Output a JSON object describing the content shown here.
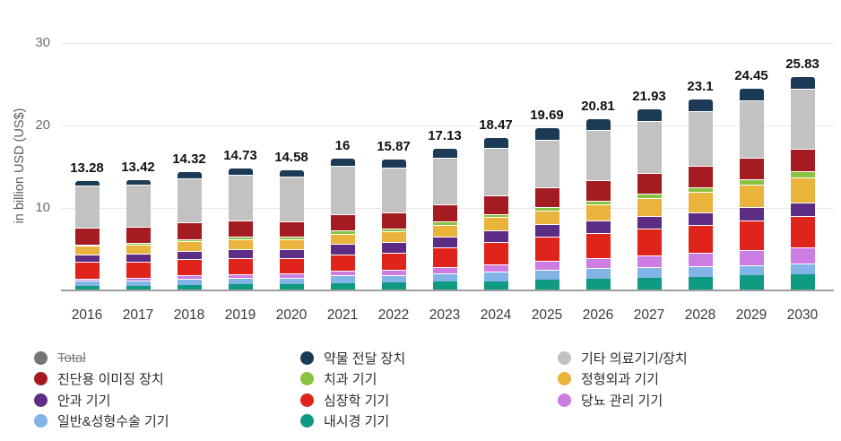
{
  "chart_data": {
    "type": "bar",
    "stacked": true,
    "ylabel": "in billion USD (US$)",
    "ylim": [
      0,
      30
    ],
    "yticks": [
      10,
      20,
      30
    ],
    "grid": true,
    "categories": [
      "2016",
      "2017",
      "2018",
      "2019",
      "2020",
      "2021",
      "2022",
      "2023",
      "2024",
      "2025",
      "2026",
      "2027",
      "2028",
      "2029",
      "2030"
    ],
    "totals": [
      13.28,
      13.42,
      14.32,
      14.73,
      14.58,
      16,
      15.87,
      17.13,
      18.47,
      19.69,
      20.81,
      21.93,
      23.1,
      24.45,
      25.83
    ],
    "total_labels": [
      "13.28",
      "13.42",
      "14.32",
      "14.73",
      "14.58",
      "16",
      "15.87",
      "17.13",
      "18.47",
      "19.69",
      "20.81",
      "21.93",
      "23.1",
      "24.45",
      "25.83"
    ],
    "series_note": "stacked bottom-to-top; values in billion USD, estimated from segment heights",
    "series": [
      {
        "id": "endoscopy",
        "name": "내시경 기기",
        "color": "#0f9b81",
        "values": [
          0.5,
          0.56,
          0.66,
          0.73,
          0.77,
          0.9,
          0.93,
          1.04,
          1.14,
          1.25,
          1.39,
          1.53,
          1.68,
          1.84,
          2.0
        ]
      },
      {
        "id": "general-plastic-surgery",
        "name": "일반&성형수술 기기",
        "color": "#82b4e8",
        "values": [
          0.65,
          0.68,
          0.75,
          0.79,
          0.8,
          0.9,
          0.94,
          1.05,
          1.18,
          1.3,
          1.28,
          1.27,
          1.25,
          1.25,
          1.25
        ]
      },
      {
        "id": "diabetes-care",
        "name": "당뇨 관리 기기",
        "color": "#cd7ce2",
        "values": [
          0.28,
          0.32,
          0.39,
          0.43,
          0.47,
          0.55,
          0.62,
          0.75,
          0.88,
          1.0,
          1.19,
          1.39,
          1.58,
          1.79,
          2.0
        ]
      },
      {
        "id": "cardiology",
        "name": "심장학 기기",
        "color": "#e0231b",
        "values": [
          2.0,
          1.94,
          1.99,
          1.98,
          1.89,
          2.0,
          2.11,
          2.4,
          2.71,
          3.0,
          3.14,
          3.29,
          3.44,
          3.62,
          3.8
        ]
      },
      {
        "id": "ophthalmic",
        "name": "안과 기기",
        "color": "#5d2c84",
        "values": [
          0.87,
          0.92,
          1.02,
          1.09,
          1.1,
          1.25,
          1.22,
          1.29,
          1.38,
          1.45,
          1.47,
          1.49,
          1.52,
          1.56,
          1.6
        ]
      },
      {
        "id": "orthopedic",
        "name": "정형외과 기기",
        "color": "#eab43c",
        "values": [
          1.1,
          1.11,
          1.18,
          1.21,
          1.19,
          1.3,
          1.31,
          1.44,
          1.57,
          1.7,
          1.95,
          2.2,
          2.45,
          2.72,
          3.0
        ]
      },
      {
        "id": "dental",
        "name": "치과 기기",
        "color": "#8ac33f",
        "values": [
          0.15,
          0.18,
          0.23,
          0.27,
          0.29,
          0.35,
          0.33,
          0.35,
          0.35,
          0.36,
          0.45,
          0.53,
          0.61,
          0.71,
          0.8
        ]
      },
      {
        "id": "diagnostic-imaging",
        "name": "진단용 이미징 장치",
        "color": "#a41c21",
        "values": [
          2.1,
          2.02,
          2.05,
          2.02,
          1.9,
          2.0,
          1.98,
          2.14,
          2.3,
          2.45,
          2.49,
          2.52,
          2.57,
          2.63,
          2.7
        ]
      },
      {
        "id": "other-devices",
        "name": "기타 의료기기/장치",
        "color": "#c2c2c2",
        "values": [
          5.08,
          5.08,
          5.37,
          5.47,
          5.38,
          5.85,
          5.48,
          5.58,
          5.72,
          5.8,
          6.07,
          6.33,
          6.61,
          6.94,
          7.28
        ]
      },
      {
        "id": "drug-delivery",
        "name": "약물 전달 장치",
        "color": "#1b3a55",
        "values": [
          0.55,
          0.6,
          0.69,
          0.75,
          0.78,
          0.9,
          0.96,
          1.09,
          1.24,
          1.38,
          1.37,
          1.38,
          1.37,
          1.39,
          1.4
        ]
      }
    ],
    "legend": {
      "position": "bottom",
      "columns": [
        [
          {
            "id": "total",
            "label": "Total",
            "color": "#757575",
            "struck": true
          },
          {
            "id": "diagnostic-imaging",
            "label": "진단용 이미징 장치",
            "color": "#a41c21",
            "struck": false
          },
          {
            "id": "ophthalmic",
            "label": "안과 기기",
            "color": "#5d2c84",
            "struck": false
          },
          {
            "id": "general-plastic-surgery",
            "label": "일반&성형수술 기기",
            "color": "#82b4e8",
            "struck": false
          }
        ],
        [
          {
            "id": "drug-delivery",
            "label": "약물 전달 장치",
            "color": "#1b3a55",
            "struck": false
          },
          {
            "id": "dental",
            "label": "치과 기기",
            "color": "#8ac33f",
            "struck": false
          },
          {
            "id": "cardiology",
            "label": "심장학 기기",
            "color": "#e0231b",
            "struck": false
          },
          {
            "id": "endoscopy",
            "label": "내시경 기기",
            "color": "#0f9b81",
            "struck": false
          }
        ],
        [
          {
            "id": "other-devices",
            "label": "기타 의료기기/장치",
            "color": "#c2c2c2",
            "struck": false
          },
          {
            "id": "orthopedic",
            "label": "정형외과 기기",
            "color": "#eab43c",
            "struck": false
          },
          {
            "id": "diabetes-care",
            "label": "당뇨 관리 기기",
            "color": "#cd7ce2",
            "struck": false
          }
        ]
      ]
    }
  }
}
